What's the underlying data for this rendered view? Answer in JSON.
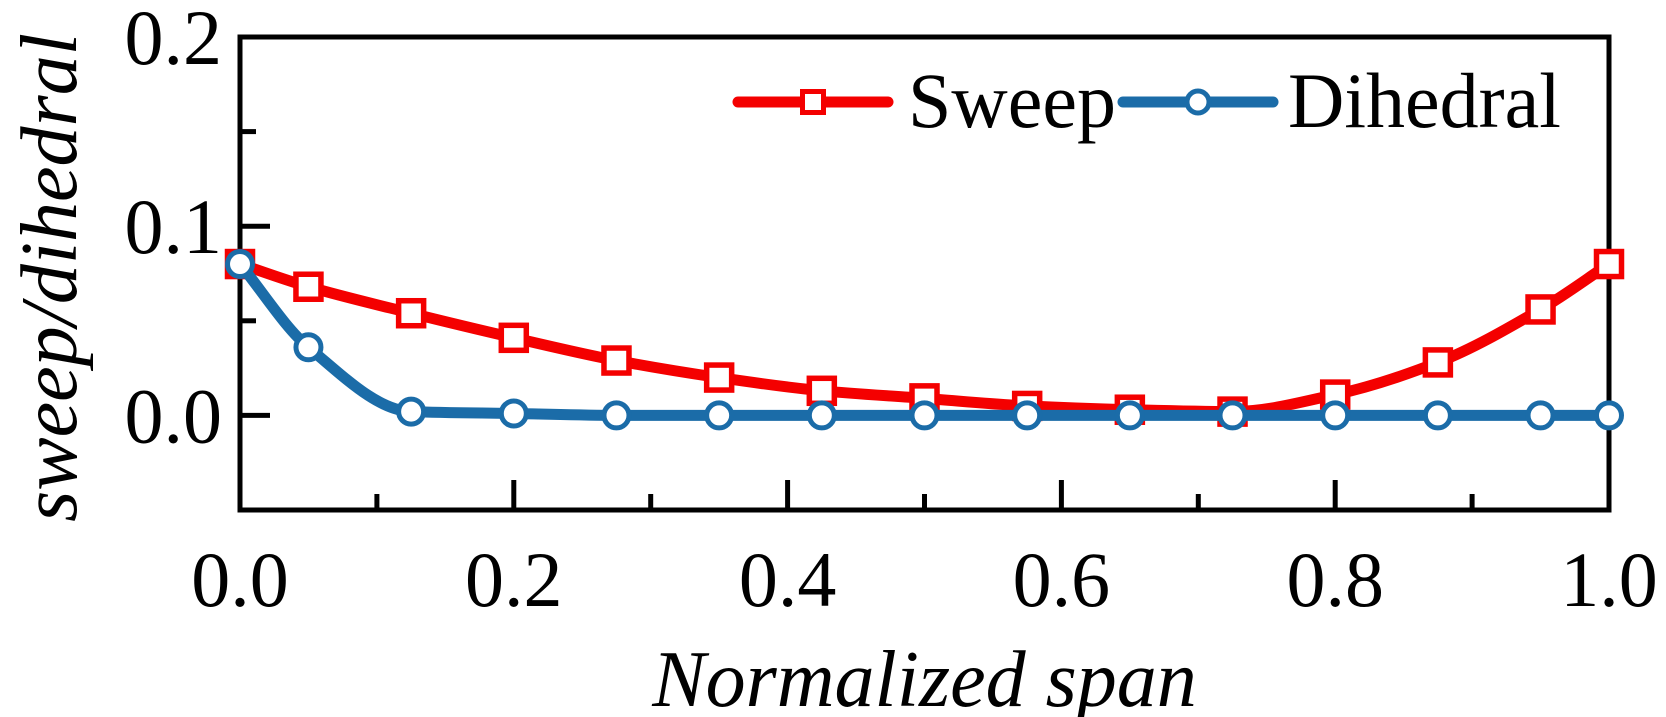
{
  "figure": {
    "background": "#ffffff",
    "frame_color": "#000000",
    "text_color": "#000000"
  },
  "chart_data": {
    "type": "line",
    "title": "",
    "xlabel": "Normalized span",
    "ylabel": "sweep/dihedral",
    "xlim": [
      0.0,
      1.0
    ],
    "ylim": [
      -0.05,
      0.2
    ],
    "grid": "off",
    "legend_position": "top-center-inside",
    "x_major_ticks": [
      0.0,
      0.2,
      0.4,
      0.6,
      0.8,
      1.0
    ],
    "x_minor_ticks": [
      0.1,
      0.3,
      0.5,
      0.7,
      0.9
    ],
    "x_tick_labels": [
      "0.0",
      "0.2",
      "0.4",
      "0.6",
      "0.8",
      "1.0"
    ],
    "y_major_ticks": [
      0.0,
      0.1,
      0.2
    ],
    "y_minor_ticks": [
      0.05,
      0.15
    ],
    "y_tick_labels": [
      "0.0",
      "0.1",
      "0.2"
    ],
    "x": [
      0.0,
      0.05,
      0.125,
      0.2,
      0.275,
      0.35,
      0.425,
      0.5,
      0.575,
      0.65,
      0.725,
      0.8,
      0.875,
      0.95,
      1.0
    ],
    "series": [
      {
        "name": "Sweep",
        "color": "#F40000",
        "marker": "square",
        "values": [
          0.08,
          0.068,
          0.054,
          0.041,
          0.029,
          0.02,
          0.013,
          0.009,
          0.005,
          0.003,
          0.002,
          0.011,
          0.028,
          0.056,
          0.08
        ]
      },
      {
        "name": "Dihedral",
        "color": "#1B6CA8",
        "marker": "circle",
        "values": [
          0.08,
          0.036,
          0.002,
          0.001,
          0.0,
          0.0,
          0.0,
          0.0,
          0.0,
          0.0,
          0.0,
          0.0,
          0.0,
          0.0,
          0.0
        ]
      }
    ]
  }
}
